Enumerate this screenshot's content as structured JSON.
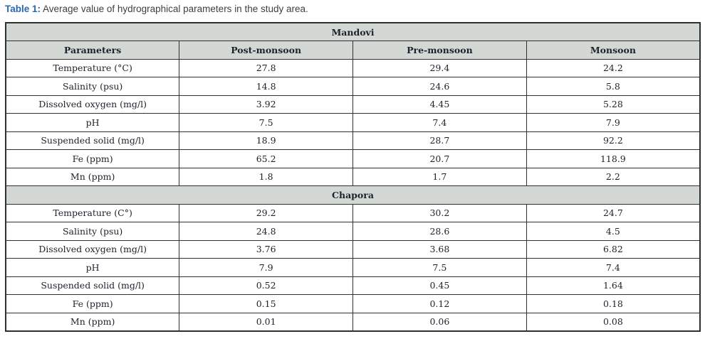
{
  "caption": {
    "label": "Table 1:",
    "text": "Average value of hydrographical parameters in the study area."
  },
  "colors": {
    "title_accent": "#2767b2",
    "title_text": "#3f3f3f",
    "header_bg": "#d4d8d4",
    "border": "#2f2f2f",
    "cell_text": "#1c222b"
  },
  "table": {
    "columns": [
      "Parameters",
      "Post-monsoon",
      "Pre-monsoon",
      "Monsoon"
    ],
    "sections": [
      {
        "name": "Mandovi",
        "rows": [
          {
            "parameter": "Temperature (°C)",
            "values": [
              "27.8",
              "29.4",
              "24.2"
            ]
          },
          {
            "parameter": "Salinity (psu)",
            "values": [
              "14.8",
              "24.6",
              "5.8"
            ]
          },
          {
            "parameter": "Dissolved oxygen (mg/l)",
            "values": [
              "3.92",
              "4.45",
              "5.28"
            ]
          },
          {
            "parameter": "pH",
            "values": [
              "7.5",
              "7.4",
              "7.9"
            ]
          },
          {
            "parameter": "Suspended solid (mg/l)",
            "values": [
              "18.9",
              "28.7",
              "92.2"
            ]
          },
          {
            "parameter": "Fe (ppm)",
            "values": [
              "65.2",
              "20.7",
              "118.9"
            ]
          },
          {
            "parameter": "Mn (ppm)",
            "values": [
              "1.8",
              "1.7",
              "2.2"
            ]
          }
        ]
      },
      {
        "name": "Chapora",
        "rows": [
          {
            "parameter": "Temperature (C°)",
            "values": [
              "29.2",
              "30.2",
              "24.7"
            ]
          },
          {
            "parameter": "Salinity (psu)",
            "values": [
              "24.8",
              "28.6",
              "4.5"
            ]
          },
          {
            "parameter": "Dissolved oxygen (mg/l)",
            "values": [
              "3.76",
              "3.68",
              "6.82"
            ]
          },
          {
            "parameter": "pH",
            "values": [
              "7.9",
              "7.5",
              "7.4"
            ]
          },
          {
            "parameter": "Suspended solid (mg/l)",
            "values": [
              "0.52",
              "0.45",
              "1.64"
            ]
          },
          {
            "parameter": "Fe (ppm)",
            "values": [
              "0.15",
              "0.12",
              "0.18"
            ]
          },
          {
            "parameter": "Mn (ppm)",
            "values": [
              "0.01",
              "0.06",
              "0.08"
            ]
          }
        ]
      }
    ]
  }
}
